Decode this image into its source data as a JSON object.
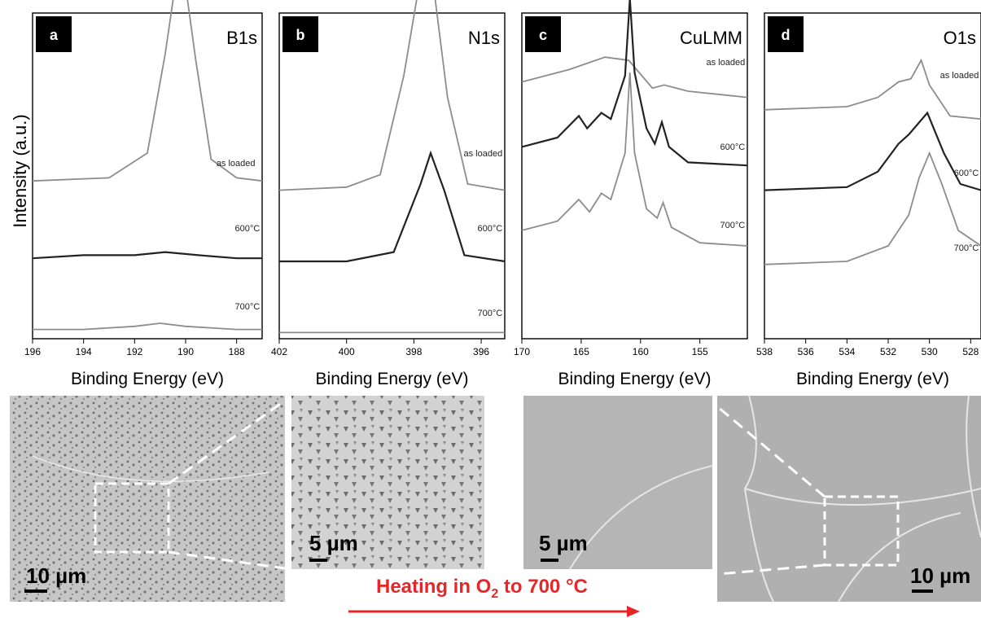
{
  "figure": {
    "ylabel": "Intensity (a.u.)",
    "caption_arrow": {
      "text_prefix": "Heating in O",
      "subscript": "2",
      "text_suffix": " to 700 °C",
      "color": "#e8262a"
    },
    "colors": {
      "as_loaded": "#8c8c8c",
      "600": "#222222",
      "700": "#8c8c8c",
      "sem_before": "#c4c4c4",
      "sem_after": "#b3b3b3",
      "dash": "#ffffff"
    },
    "sem_images": [
      {
        "scale_label": "10 µm"
      },
      {
        "scale_label": "5 µm"
      },
      {
        "scale_label": "5 µm"
      },
      {
        "scale_label": "10 µm"
      }
    ]
  },
  "chart_data": [
    {
      "type": "line",
      "panel_label": "a",
      "title": "B1s",
      "xlabel": "Binding Energy (eV)",
      "xlim": [
        196,
        187
      ],
      "xticks": [
        196,
        194,
        192,
        190,
        188
      ],
      "series": [
        {
          "name": "as loaded",
          "x": [
            196,
            193,
            191.5,
            190.8,
            190.2,
            189.6,
            189,
            188,
            187
          ],
          "y": [
            0.51,
            0.52,
            0.6,
            0.92,
            1.26,
            0.9,
            0.58,
            0.52,
            0.51
          ]
        },
        {
          "name": "600°C",
          "x": [
            196,
            194,
            192,
            190.8,
            189.5,
            188,
            187
          ],
          "y": [
            0.26,
            0.27,
            0.27,
            0.28,
            0.27,
            0.26,
            0.26
          ]
        },
        {
          "name": "700°C",
          "x": [
            196,
            194,
            192,
            191,
            190,
            188,
            187
          ],
          "y": [
            0.03,
            0.03,
            0.04,
            0.05,
            0.04,
            0.03,
            0.03
          ]
        }
      ]
    },
    {
      "type": "line",
      "panel_label": "b",
      "title": "N1s",
      "xlabel": "Binding Energy (eV)",
      "xlim": [
        402,
        395.3
      ],
      "xticks": [
        402,
        400,
        398,
        396
      ],
      "series": [
        {
          "name": "as loaded",
          "x": [
            402,
            400,
            399,
            398.3,
            397.6,
            397,
            396.4,
            395.3
          ],
          "y": [
            0.48,
            0.49,
            0.53,
            0.85,
            1.3,
            0.78,
            0.5,
            0.48
          ]
        },
        {
          "name": "600°C",
          "x": [
            402,
            400,
            398.6,
            397.8,
            397.5,
            397.1,
            396.5,
            395.3
          ],
          "y": [
            0.25,
            0.25,
            0.28,
            0.5,
            0.6,
            0.48,
            0.27,
            0.25
          ]
        },
        {
          "name": "700°C",
          "x": [
            402,
            399,
            396,
            395.3
          ],
          "y": [
            0.02,
            0.02,
            0.02,
            0.02
          ]
        }
      ]
    },
    {
      "type": "line",
      "panel_label": "c",
      "title": "CuLMM",
      "xlabel": "Binding Energy (eV)",
      "xlim": [
        170,
        151
      ],
      "xticks": [
        170,
        165,
        160,
        155
      ],
      "series": [
        {
          "name": "as loaded",
          "x": [
            170,
            166,
            163,
            161,
            159,
            158,
            156,
            151
          ],
          "y": [
            0.83,
            0.87,
            0.91,
            0.9,
            0.81,
            0.82,
            0.8,
            0.78
          ]
        },
        {
          "name": "600°C",
          "x": [
            170,
            167,
            165.2,
            164.5,
            163.3,
            162.5,
            161.3,
            160.9,
            160.5,
            159.5,
            158.8,
            158.2,
            157.6,
            156,
            151
          ],
          "y": [
            0.62,
            0.65,
            0.72,
            0.68,
            0.73,
            0.71,
            0.85,
            1.1,
            0.86,
            0.68,
            0.63,
            0.7,
            0.62,
            0.57,
            0.56
          ]
        },
        {
          "name": "700°C",
          "x": [
            170,
            167,
            165.2,
            164.3,
            163.3,
            162.5,
            161.3,
            160.9,
            160.5,
            159.5,
            158.6,
            158.1,
            157.4,
            155,
            151
          ],
          "y": [
            0.35,
            0.38,
            0.45,
            0.41,
            0.47,
            0.45,
            0.6,
            0.86,
            0.6,
            0.42,
            0.39,
            0.44,
            0.36,
            0.31,
            0.3
          ]
        }
      ]
    },
    {
      "type": "line",
      "panel_label": "d",
      "title": "O1s",
      "xlabel": "Binding Energy (eV)",
      "xlim": [
        538,
        527.5
      ],
      "xticks": [
        538,
        536,
        534,
        532,
        530,
        528
      ],
      "series": [
        {
          "name": "as loaded",
          "x": [
            538,
            534,
            532.5,
            531.5,
            530.9,
            530.4,
            530,
            529,
            527.5
          ],
          "y": [
            0.74,
            0.75,
            0.78,
            0.83,
            0.84,
            0.9,
            0.82,
            0.72,
            0.71
          ]
        },
        {
          "name": "600°C",
          "x": [
            538,
            534,
            532.5,
            531.5,
            531,
            530.1,
            529.3,
            528.5,
            527.5
          ],
          "y": [
            0.48,
            0.49,
            0.54,
            0.63,
            0.66,
            0.73,
            0.6,
            0.5,
            0.48
          ]
        },
        {
          "name": "700°C",
          "x": [
            538,
            534,
            532,
            531,
            530.5,
            530,
            529.4,
            528.6,
            527.5
          ],
          "y": [
            0.24,
            0.25,
            0.3,
            0.4,
            0.52,
            0.6,
            0.5,
            0.35,
            0.3
          ]
        }
      ]
    }
  ]
}
